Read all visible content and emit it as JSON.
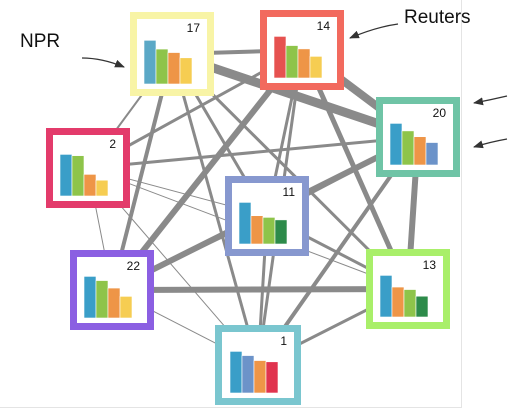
{
  "labels": {
    "npr": "NPR",
    "reuters": "Reuters"
  },
  "nodes": [
    {
      "id": "17",
      "color": "#f8f4a6",
      "bars": [
        {
          "color": "#5ba8c6",
          "value": 1.0
        },
        {
          "color": "#8ec44a",
          "value": 0.8
        },
        {
          "color": "#ee9547",
          "value": 0.72
        },
        {
          "color": "#f6cd52",
          "value": 0.6
        }
      ]
    },
    {
      "id": "14",
      "color": "#f26a5e",
      "bars": [
        {
          "color": "#e65250",
          "value": 1.0
        },
        {
          "color": "#8ec44a",
          "value": 0.78
        },
        {
          "color": "#ee9547",
          "value": 0.7
        },
        {
          "color": "#f6cd52",
          "value": 0.52
        }
      ]
    },
    {
      "id": "20",
      "color": "#6fc4a6",
      "bars": [
        {
          "color": "#3a9ec8",
          "value": 1.0
        },
        {
          "color": "#8ec44a",
          "value": 0.82
        },
        {
          "color": "#ee9547",
          "value": 0.68
        },
        {
          "color": "#6c93c9",
          "value": 0.54
        }
      ]
    },
    {
      "id": "2",
      "color": "#e33b6b",
      "bars": [
        {
          "color": "#3a9ec8",
          "value": 1.0
        },
        {
          "color": "#8ec44a",
          "value": 0.97
        },
        {
          "color": "#ee9547",
          "value": 0.52
        },
        {
          "color": "#f6cd52",
          "value": 0.38
        }
      ]
    },
    {
      "id": "11",
      "color": "#8798cf",
      "bars": [
        {
          "color": "#3a9ec8",
          "value": 1.0
        },
        {
          "color": "#ee9547",
          "value": 0.68
        },
        {
          "color": "#8ec44a",
          "value": 0.64
        },
        {
          "color": "#2d8b4a",
          "value": 0.58
        }
      ]
    },
    {
      "id": "22",
      "color": "#8b5fe2",
      "bars": [
        {
          "color": "#3a9ec8",
          "value": 1.0
        },
        {
          "color": "#8ec44a",
          "value": 0.9
        },
        {
          "color": "#ee9547",
          "value": 0.72
        },
        {
          "color": "#f6cd52",
          "value": 0.52
        }
      ]
    },
    {
      "id": "13",
      "color": "#a9ef6a",
      "bars": [
        {
          "color": "#3a9ec8",
          "value": 1.0
        },
        {
          "color": "#ee9547",
          "value": 0.72
        },
        {
          "color": "#8ec44a",
          "value": 0.66
        },
        {
          "color": "#2d8b4a",
          "value": 0.5
        }
      ]
    },
    {
      "id": "1",
      "color": "#7ac6cf",
      "bars": [
        {
          "color": "#3a9ec8",
          "value": 1.0
        },
        {
          "color": "#6c93c9",
          "value": 0.9
        },
        {
          "color": "#ee9547",
          "value": 0.78
        },
        {
          "color": "#e0334e",
          "value": 0.75
        }
      ]
    }
  ],
  "edges": [
    {
      "a": "17",
      "b": "14",
      "weight": 4
    },
    {
      "a": "17",
      "b": "20",
      "weight": 9
    },
    {
      "a": "17",
      "b": "2",
      "weight": 2
    },
    {
      "a": "17",
      "b": "11",
      "weight": 3
    },
    {
      "a": "17",
      "b": "22",
      "weight": 4
    },
    {
      "a": "17",
      "b": "13",
      "weight": 3
    },
    {
      "a": "17",
      "b": "1",
      "weight": 3
    },
    {
      "a": "14",
      "b": "20",
      "weight": 8
    },
    {
      "a": "14",
      "b": "2",
      "weight": 3
    },
    {
      "a": "14",
      "b": "11",
      "weight": 3
    },
    {
      "a": "14",
      "b": "22",
      "weight": 6
    },
    {
      "a": "14",
      "b": "13",
      "weight": 5
    },
    {
      "a": "14",
      "b": "1",
      "weight": 3
    },
    {
      "a": "20",
      "b": "2",
      "weight": 3
    },
    {
      "a": "20",
      "b": "11",
      "weight": 3
    },
    {
      "a": "20",
      "b": "22",
      "weight": 6
    },
    {
      "a": "20",
      "b": "13",
      "weight": 6
    },
    {
      "a": "20",
      "b": "1",
      "weight": 4
    },
    {
      "a": "2",
      "b": "11",
      "weight": 1
    },
    {
      "a": "2",
      "b": "22",
      "weight": 1
    },
    {
      "a": "2",
      "b": "13",
      "weight": 1
    },
    {
      "a": "2",
      "b": "1",
      "weight": 1
    },
    {
      "a": "11",
      "b": "22",
      "weight": 2
    },
    {
      "a": "11",
      "b": "13",
      "weight": 3
    },
    {
      "a": "11",
      "b": "1",
      "weight": 3
    },
    {
      "a": "22",
      "b": "13",
      "weight": 6
    },
    {
      "a": "22",
      "b": "1",
      "weight": 1
    },
    {
      "a": "13",
      "b": "1",
      "weight": 3
    }
  ]
}
